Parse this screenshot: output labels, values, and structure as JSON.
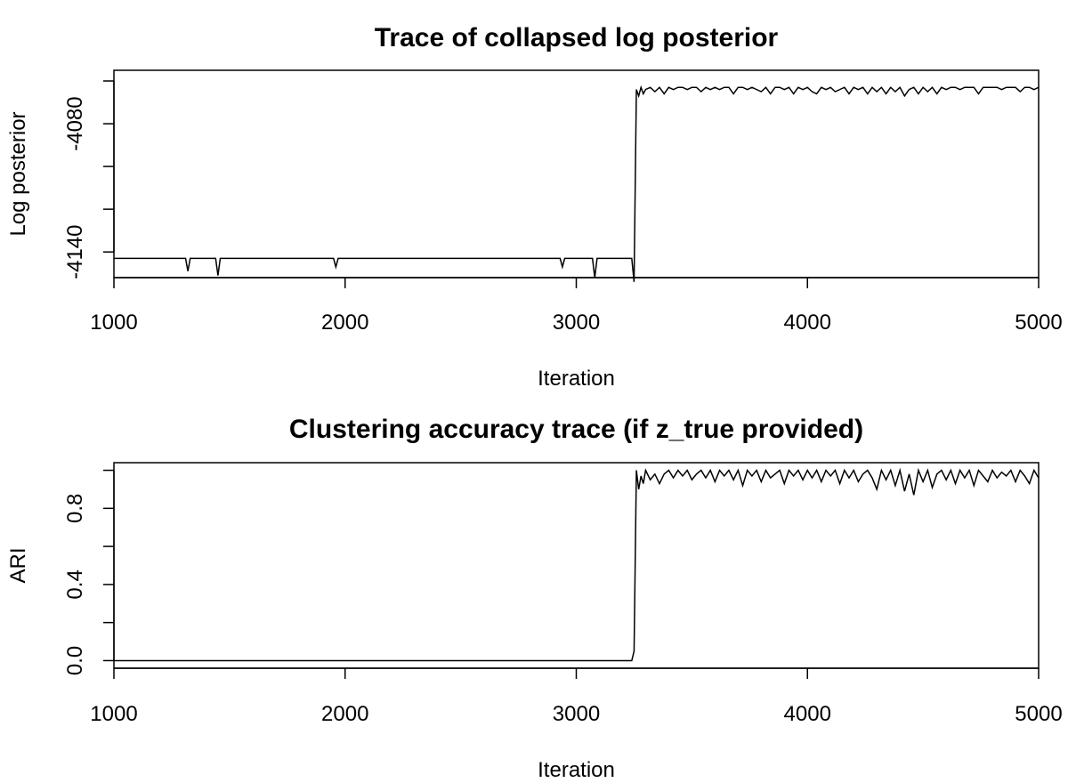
{
  "chart_data": [
    {
      "type": "line",
      "title": "Trace of collapsed log posterior",
      "xlabel": "Iteration",
      "ylabel": "Log posterior",
      "xlim": [
        1000,
        5000
      ],
      "ylim": [
        -4152,
        -4055
      ],
      "xticks": [
        1000,
        2000,
        3000,
        4000,
        5000
      ],
      "xtick_labels": [
        "1000",
        "2000",
        "3000",
        "4000",
        "5000"
      ],
      "yticks": [
        -4140,
        -4120,
        -4100,
        -4080,
        -4060
      ],
      "ytick_labels": [
        "-4140",
        "",
        "",
        "-4080",
        ""
      ],
      "grid": false,
      "series": [
        {
          "x": [
            1000,
            1310,
            1320,
            1330,
            1440,
            1450,
            1460,
            1950,
            1960,
            1970,
            2930,
            2940,
            2950,
            3070,
            3080,
            3090,
            3240,
            3250,
            3260,
            3270,
            3280,
            3290,
            3300,
            3320,
            3340,
            3360,
            3380,
            3400,
            3420,
            3440,
            3460,
            3480,
            3500,
            3520,
            3540,
            3560,
            3580,
            3600,
            3620,
            3640,
            3660,
            3680,
            3700,
            3720,
            3740,
            3760,
            3780,
            3800,
            3820,
            3840,
            3860,
            3880,
            3900,
            3920,
            3940,
            3960,
            3980,
            4000,
            4020,
            4040,
            4060,
            4080,
            4100,
            4120,
            4140,
            4160,
            4180,
            4200,
            4220,
            4240,
            4260,
            4280,
            4300,
            4320,
            4340,
            4360,
            4380,
            4400,
            4420,
            4440,
            4460,
            4480,
            4500,
            4520,
            4540,
            4560,
            4580,
            4600,
            4620,
            4640,
            4660,
            4680,
            4700,
            4720,
            4740,
            4760,
            4780,
            4800,
            4820,
            4840,
            4860,
            4880,
            4900,
            4920,
            4940,
            4960,
            4980,
            5000
          ],
          "y": [
            -4143,
            -4143,
            -4149,
            -4143,
            -4143,
            -4151,
            -4143,
            -4143,
            -4147,
            -4143,
            -4143,
            -4147,
            -4143,
            -4143,
            -4152,
            -4143,
            -4143,
            -4154,
            -4064,
            -4067,
            -4063,
            -4066,
            -4064,
            -4063,
            -4065,
            -4063,
            -4066,
            -4063,
            -4064,
            -4063,
            -4063,
            -4064,
            -4063,
            -4063,
            -4065,
            -4063,
            -4064,
            -4063,
            -4064,
            -4063,
            -4063,
            -4066,
            -4063,
            -4063,
            -4064,
            -4063,
            -4064,
            -4065,
            -4063,
            -4066,
            -4063,
            -4063,
            -4064,
            -4063,
            -4066,
            -4063,
            -4064,
            -4063,
            -4065,
            -4066,
            -4063,
            -4064,
            -4063,
            -4065,
            -4064,
            -4063,
            -4066,
            -4063,
            -4064,
            -4063,
            -4066,
            -4063,
            -4065,
            -4063,
            -4066,
            -4063,
            -4065,
            -4063,
            -4067,
            -4064,
            -4063,
            -4066,
            -4063,
            -4065,
            -4063,
            -4066,
            -4063,
            -4064,
            -4063,
            -4063,
            -4064,
            -4063,
            -4063,
            -4063,
            -4066,
            -4063,
            -4063,
            -4063,
            -4063,
            -4064,
            -4063,
            -4063,
            -4063,
            -4065,
            -4063,
            -4063,
            -4064,
            -4063
          ]
        }
      ]
    },
    {
      "type": "line",
      "title": "Clustering accuracy trace (if z_true provided)",
      "xlabel": "Iteration",
      "ylabel": "ARI",
      "xlim": [
        1000,
        5000
      ],
      "ylim": [
        -0.04,
        1.04
      ],
      "xticks": [
        1000,
        2000,
        3000,
        4000,
        5000
      ],
      "xtick_labels": [
        "1000",
        "2000",
        "3000",
        "4000",
        "5000"
      ],
      "yticks": [
        0.0,
        0.2,
        0.4,
        0.6,
        0.8,
        1.0
      ],
      "ytick_labels": [
        "0.0",
        "",
        "0.4",
        "",
        "0.8",
        ""
      ],
      "grid": false,
      "series": [
        {
          "x": [
            1000,
            3240,
            3250,
            3260,
            3270,
            3280,
            3290,
            3300,
            3320,
            3340,
            3360,
            3380,
            3400,
            3420,
            3440,
            3460,
            3480,
            3500,
            3520,
            3540,
            3560,
            3580,
            3600,
            3620,
            3640,
            3660,
            3680,
            3700,
            3720,
            3740,
            3760,
            3780,
            3800,
            3820,
            3840,
            3860,
            3880,
            3900,
            3920,
            3940,
            3960,
            3980,
            4000,
            4020,
            4040,
            4060,
            4080,
            4100,
            4120,
            4140,
            4160,
            4180,
            4200,
            4220,
            4240,
            4260,
            4280,
            4300,
            4320,
            4340,
            4360,
            4380,
            4400,
            4420,
            4440,
            4460,
            4480,
            4500,
            4520,
            4540,
            4560,
            4580,
            4600,
            4620,
            4640,
            4660,
            4680,
            4700,
            4720,
            4740,
            4760,
            4780,
            4800,
            4820,
            4840,
            4860,
            4880,
            4900,
            4920,
            4940,
            4960,
            4980,
            5000
          ],
          "y": [
            0.0,
            0.0,
            0.05,
            1.0,
            0.9,
            0.97,
            0.93,
            1.0,
            0.95,
            0.98,
            0.93,
            0.98,
            1.0,
            0.96,
            1.0,
            0.97,
            1.0,
            0.95,
            0.98,
            1.0,
            0.96,
            1.0,
            0.94,
            1.0,
            0.97,
            1.0,
            0.95,
            1.0,
            0.92,
            1.0,
            0.97,
            1.0,
            0.94,
            1.0,
            0.96,
            0.98,
            1.0,
            0.93,
            1.0,
            0.97,
            1.0,
            0.95,
            1.0,
            0.96,
            1.0,
            0.94,
            1.0,
            0.97,
            1.0,
            0.93,
            1.0,
            0.96,
            1.0,
            0.94,
            0.98,
            1.0,
            0.96,
            0.9,
            1.0,
            0.95,
            1.0,
            0.92,
            1.0,
            0.89,
            0.98,
            0.87,
            1.0,
            0.94,
            1.0,
            0.91,
            0.98,
            1.0,
            0.95,
            1.0,
            0.93,
            1.0,
            0.96,
            1.0,
            0.92,
            1.0,
            0.97,
            0.94,
            1.0,
            0.96,
            0.99,
            0.97,
            1.0,
            0.94,
            1.0,
            0.97,
            0.93,
            1.0,
            0.96
          ]
        }
      ]
    }
  ]
}
